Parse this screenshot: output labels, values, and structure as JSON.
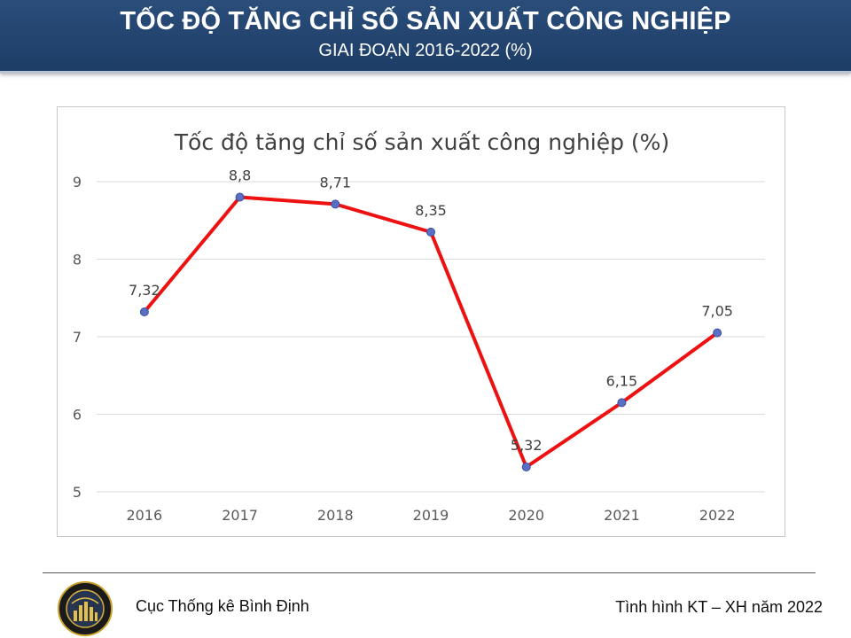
{
  "header": {
    "title": "TỐC ĐỘ TĂNG CHỈ SỐ SẢN XUẤT CÔNG NGHIỆP",
    "subtitle": "GIAI ĐOẠN 2016-2022 (%)"
  },
  "chart_data": {
    "type": "line",
    "title": "Tốc độ tăng chỉ số sản xuất công nghiệp (%)",
    "categories": [
      "2016",
      "2017",
      "2018",
      "2019",
      "2020",
      "2021",
      "2022"
    ],
    "values": [
      7.32,
      8.8,
      8.71,
      8.35,
      5.32,
      6.15,
      7.05
    ],
    "data_labels": [
      "7,32",
      "8,8",
      "8,71",
      "8,35",
      "5,32",
      "6,15",
      "7,05"
    ],
    "yticks": [
      "5",
      "6",
      "7",
      "8",
      "9"
    ],
    "ylim": [
      5,
      9
    ],
    "grid": true,
    "legend": "none",
    "line_color": "#ee1111",
    "marker_color": "#5a6fc4"
  },
  "footer": {
    "agency": "Cục Thống kê Bình Định",
    "report": "Tình hình KT – XH năm 2022",
    "logo_icon": "statistics-office-emblem"
  }
}
